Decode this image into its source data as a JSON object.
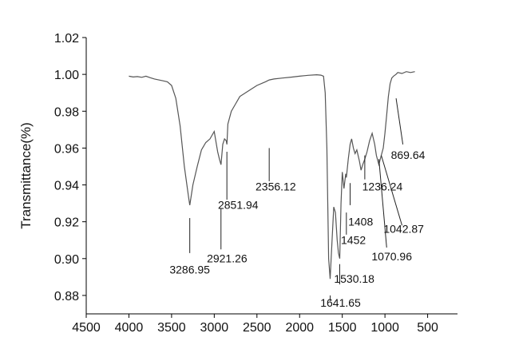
{
  "chart_data": {
    "type": "line",
    "title": "",
    "xlabel": "",
    "ylabel": "Transmittance(%)",
    "x_reversed": true,
    "xlim": [
      4500,
      150
    ],
    "ylim": [
      0.87,
      1.02
    ],
    "xticks": [
      4500,
      4000,
      3500,
      3000,
      2500,
      2000,
      1500,
      1000,
      500
    ],
    "yticks": [
      0.88,
      0.9,
      0.92,
      0.94,
      0.96,
      0.98,
      1.0,
      1.02
    ],
    "xtick_labels": [
      "4500",
      "4000",
      "3500",
      "3000",
      "2500",
      "2000",
      "1500",
      "1000",
      "500"
    ],
    "ytick_labels": [
      "0.88",
      "0.90",
      "0.92",
      "0.94",
      "0.96",
      "0.98",
      "1.00",
      "1.02"
    ],
    "grid": false,
    "legend": "none",
    "line_color": "#555555",
    "series": [
      {
        "x": [
          4000,
          3950,
          3900,
          3850,
          3800,
          3750,
          3700,
          3650,
          3600,
          3550,
          3500,
          3450,
          3400,
          3350,
          3300,
          3287,
          3250,
          3200,
          3150,
          3100,
          3050,
          3000,
          2960,
          2940,
          2921,
          2900,
          2880,
          2860,
          2852,
          2840,
          2800,
          2750,
          2700,
          2600,
          2500,
          2400,
          2356,
          2300,
          2200,
          2100,
          2000,
          1900,
          1800,
          1750,
          1720,
          1700,
          1680,
          1660,
          1642,
          1620,
          1600,
          1580,
          1560,
          1545,
          1530,
          1515,
          1500,
          1480,
          1460,
          1452,
          1430,
          1408,
          1390,
          1370,
          1350,
          1330,
          1300,
          1280,
          1260,
          1236,
          1210,
          1180,
          1150,
          1120,
          1100,
          1071,
          1060,
          1043,
          1020,
          1000,
          980,
          960,
          940,
          920,
          900,
          870,
          850,
          800,
          750,
          700,
          650
        ],
        "y": [
          0.999,
          0.9986,
          0.9988,
          0.9984,
          0.999,
          0.9982,
          0.9975,
          0.997,
          0.9965,
          0.996,
          0.994,
          0.987,
          0.972,
          0.95,
          0.933,
          0.929,
          0.94,
          0.95,
          0.959,
          0.963,
          0.965,
          0.969,
          0.958,
          0.954,
          0.951,
          0.962,
          0.965,
          0.964,
          0.962,
          0.973,
          0.98,
          0.984,
          0.988,
          0.991,
          0.994,
          0.996,
          0.997,
          0.9975,
          0.998,
          0.9985,
          0.999,
          0.9995,
          0.9998,
          0.9996,
          0.999,
          0.99,
          0.96,
          0.9,
          0.889,
          0.91,
          0.928,
          0.925,
          0.91,
          0.903,
          0.9,
          0.93,
          0.947,
          0.938,
          0.946,
          0.944,
          0.954,
          0.962,
          0.965,
          0.96,
          0.957,
          0.959,
          0.953,
          0.948,
          0.951,
          0.954,
          0.958,
          0.964,
          0.968,
          0.962,
          0.956,
          0.951,
          0.953,
          0.956,
          0.96,
          0.968,
          0.978,
          0.988,
          0.995,
          0.998,
          0.999,
          1.0,
          1.001,
          1.0005,
          1.0015,
          1.001,
          1.0015
        ]
      }
    ],
    "annotations": [
      {
        "text": "3286.95",
        "x": 3286.95,
        "line_y1": 0.922,
        "line_y2": 0.903,
        "label_x": 3286.95,
        "label_y": 0.892
      },
      {
        "text": "2921.26",
        "x": 2921.26,
        "line_y1": 0.927,
        "line_y2": 0.905,
        "label_x": 2850,
        "label_y": 0.898
      },
      {
        "text": "2851.94",
        "x": 2851.94,
        "line_y1": 0.958,
        "line_y2": 0.932,
        "label_x": 2720,
        "label_y": 0.927
      },
      {
        "text": "2356.12",
        "x": 2356.12,
        "line_y1": 0.96,
        "line_y2": 0.942,
        "label_x": 2280,
        "label_y": 0.937
      },
      {
        "text": "1641.65",
        "x": 1641.65,
        "line_y1": 0.88,
        "line_y2": 0.877,
        "label_x": 1520,
        "label_y": 0.874
      },
      {
        "text": "1530.18",
        "x": 1530.18,
        "line_y1": 0.897,
        "line_y2": 0.886,
        "label_x": 1360,
        "label_y": 0.887
      },
      {
        "text": "1452",
        "x": 1452,
        "line_y1": 0.925,
        "line_y2": 0.913,
        "label_x": 1370,
        "label_y": 0.908
      },
      {
        "text": "1408",
        "x": 1408,
        "line_y1": 0.941,
        "line_y2": 0.929,
        "label_x": 1285,
        "label_y": 0.918
      },
      {
        "text": "1236.24",
        "x": 1236.24,
        "line_y1": 0.956,
        "line_y2": 0.943,
        "label_x": 1030,
        "label_y": 0.937
      },
      {
        "text": "1070.96",
        "x": 1070.96,
        "line_y1": 0.954,
        "line_y2": 0.906,
        "label_x": 920,
        "label_y": 0.899,
        "line_x2": 980
      },
      {
        "text": "1042.87",
        "x": 1042.87,
        "line_y1": 0.956,
        "line_y2": 0.918,
        "label_x": 780,
        "label_y": 0.914,
        "line_x2": 800
      },
      {
        "text": "869.64",
        "x": 869.64,
        "line_y1": 0.987,
        "line_y2": 0.962,
        "label_x": 730,
        "label_y": 0.954,
        "line_x2": 790
      }
    ]
  }
}
